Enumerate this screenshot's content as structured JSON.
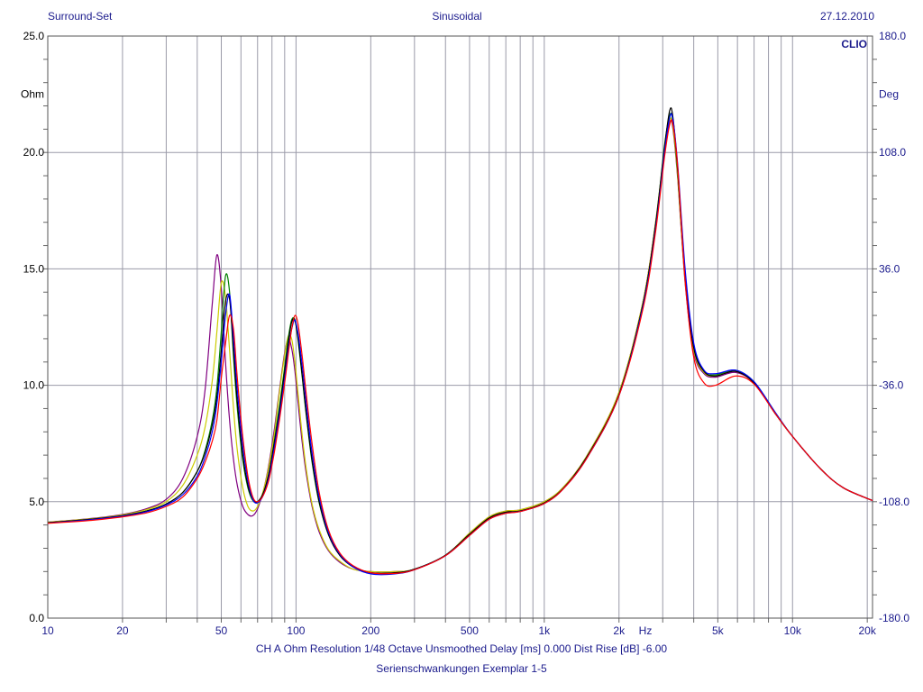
{
  "header": {
    "left": "Surround-Set",
    "center": "Sinusoidal",
    "right": "27.12.2010"
  },
  "footer": {
    "line1": "CH A   Ohm   Resolution 1/48 Octave   Unsmoothed   Delay [ms] 0.000   Dist Rise [dB] -6.00",
    "line2": "Serienschwankungen Exemplar 1-5"
  },
  "chart_data": {
    "type": "line",
    "brand": "CLIO",
    "xlabel": "Hz",
    "ylabel": "Ohm",
    "y2label": "Deg",
    "xscale": "log",
    "xlim": [
      10,
      21000
    ],
    "ylim": [
      0,
      25
    ],
    "y2lim": [
      -180,
      180
    ],
    "grid": true,
    "x_ticks": [
      {
        "v": 10,
        "l": "10"
      },
      {
        "v": 20,
        "l": "20"
      },
      {
        "v": 50,
        "l": "50"
      },
      {
        "v": 100,
        "l": "100"
      },
      {
        "v": 200,
        "l": "200"
      },
      {
        "v": 500,
        "l": "500"
      },
      {
        "v": 1000,
        "l": "1k"
      },
      {
        "v": 2000,
        "l": "2k"
      },
      {
        "v": 5000,
        "l": "5k"
      },
      {
        "v": 10000,
        "l": "10k"
      },
      {
        "v": 20000,
        "l": "20k"
      }
    ],
    "y_ticks": [
      {
        "v": 0,
        "l": "0.0"
      },
      {
        "v": 5,
        "l": "5.0"
      },
      {
        "v": 10,
        "l": "10.0"
      },
      {
        "v": 15,
        "l": "15.0"
      },
      {
        "v": 20,
        "l": "20.0"
      },
      {
        "v": 25,
        "l": "25.0"
      }
    ],
    "y2_ticks": [
      {
        "v": -180,
        "l": "-180.0"
      },
      {
        "v": -108,
        "l": "-108.0"
      },
      {
        "v": -36,
        "l": "-36.0"
      },
      {
        "v": 36,
        "l": "36.0"
      },
      {
        "v": 108,
        "l": "108.0"
      },
      {
        "v": 180,
        "l": "180.0"
      }
    ],
    "x": [
      10,
      15,
      20,
      25,
      30,
      35,
      40,
      43,
      46,
      48,
      50,
      52,
      54,
      56,
      58,
      61,
      64,
      67,
      70,
      74,
      78,
      82,
      86,
      90,
      93,
      96,
      99,
      102,
      106,
      110,
      116,
      124,
      135,
      150,
      170,
      200,
      250,
      300,
      400,
      500,
      600,
      700,
      800,
      1000,
      1200,
      1500,
      2000,
      2500,
      2800,
      3050,
      3200,
      3300,
      3450,
      3700,
      4000,
      4400,
      4900,
      5900,
      7000,
      8500,
      10000,
      13000,
      16000,
      21000
    ],
    "series": [
      {
        "color": "#800080",
        "values": [
          4.12,
          4.28,
          4.45,
          4.7,
          5.1,
          6.0,
          7.8,
          9.8,
          13.5,
          15.6,
          14.2,
          11.0,
          8.5,
          6.8,
          5.7,
          4.8,
          4.45,
          4.4,
          4.7,
          5.5,
          6.7,
          8.2,
          9.9,
          11.4,
          12.0,
          11.6,
          10.6,
          9.2,
          7.5,
          6.2,
          4.8,
          3.7,
          2.9,
          2.4,
          2.1,
          2.0,
          2.0,
          2.1,
          2.7,
          3.65,
          4.35,
          4.6,
          4.65,
          5.0,
          5.65,
          7.05,
          9.7,
          13.6,
          16.9,
          20.1,
          21.3,
          21.0,
          18.8,
          14.3,
          11.4,
          10.5,
          10.35,
          10.55,
          10.1,
          8.8,
          7.8,
          6.4,
          5.6,
          5.05
        ]
      },
      {
        "color": "#cccc00",
        "values": [
          4.12,
          4.27,
          4.43,
          4.66,
          5.0,
          5.7,
          7.0,
          8.2,
          10.2,
          12.3,
          14.4,
          13.8,
          11.5,
          9.0,
          7.2,
          5.6,
          4.8,
          4.6,
          4.8,
          5.5,
          6.6,
          8.0,
          9.8,
          11.3,
          12.1,
          12.0,
          11.0,
          9.6,
          7.8,
          6.4,
          4.9,
          3.8,
          2.95,
          2.45,
          2.1,
          2.0,
          2.0,
          2.1,
          2.7,
          3.65,
          4.35,
          4.6,
          4.65,
          5.0,
          5.65,
          7.05,
          9.7,
          13.6,
          16.9,
          20.2,
          21.4,
          21.1,
          18.9,
          14.4,
          11.5,
          10.55,
          10.4,
          10.6,
          10.1,
          8.8,
          7.8,
          6.4,
          5.6,
          5.05
        ]
      },
      {
        "color": "#008000",
        "values": [
          4.1,
          4.25,
          4.4,
          4.6,
          4.9,
          5.4,
          6.3,
          7.2,
          8.5,
          9.9,
          12.3,
          14.7,
          14.0,
          11.2,
          9.0,
          6.8,
          5.6,
          5.05,
          5.0,
          5.4,
          6.3,
          7.7,
          9.2,
          10.8,
          12.0,
          12.8,
          12.8,
          11.9,
          10.3,
          8.7,
          6.7,
          4.95,
          3.6,
          2.7,
          2.2,
          1.95,
          1.95,
          2.1,
          2.7,
          3.6,
          4.3,
          4.55,
          4.6,
          4.95,
          5.6,
          7.0,
          9.6,
          13.5,
          16.8,
          20.3,
          21.6,
          21.3,
          19.1,
          14.6,
          11.7,
          10.6,
          10.45,
          10.65,
          10.15,
          8.85,
          7.8,
          6.4,
          5.6,
          5.05
        ]
      },
      {
        "color": "#000000",
        "values": [
          4.1,
          4.25,
          4.4,
          4.6,
          4.9,
          5.4,
          6.3,
          7.1,
          8.3,
          9.5,
          11.5,
          13.6,
          13.7,
          11.5,
          9.3,
          7.0,
          5.7,
          5.1,
          5.0,
          5.4,
          6.3,
          7.6,
          9.0,
          10.6,
          11.8,
          12.7,
          12.8,
          12.0,
          10.4,
          8.8,
          6.8,
          5.0,
          3.6,
          2.7,
          2.2,
          1.95,
          1.95,
          2.1,
          2.7,
          3.6,
          4.3,
          4.55,
          4.6,
          4.95,
          5.6,
          7.0,
          9.6,
          13.5,
          16.8,
          20.2,
          21.8,
          21.5,
          19.2,
          14.6,
          11.6,
          10.6,
          10.4,
          10.6,
          10.1,
          8.8,
          7.8,
          6.4,
          5.6,
          5.05
        ]
      },
      {
        "color": "#0000ff",
        "values": [
          4.08,
          4.23,
          4.38,
          4.57,
          4.86,
          5.3,
          6.1,
          6.9,
          8.0,
          9.2,
          11.0,
          13.0,
          13.9,
          12.0,
          9.8,
          7.4,
          5.9,
          5.1,
          4.95,
          5.3,
          6.1,
          7.4,
          8.8,
          10.3,
          11.5,
          12.4,
          12.8,
          12.2,
          10.8,
          9.2,
          7.1,
          5.2,
          3.7,
          2.75,
          2.2,
          1.9,
          1.9,
          2.08,
          2.68,
          3.55,
          4.25,
          4.5,
          4.58,
          4.92,
          5.58,
          6.95,
          9.55,
          13.4,
          16.6,
          20.0,
          21.5,
          21.4,
          19.4,
          14.9,
          11.8,
          10.65,
          10.5,
          10.65,
          10.15,
          8.85,
          7.8,
          6.4,
          5.6,
          5.05
        ]
      },
      {
        "color": "#ff0000",
        "values": [
          4.07,
          4.2,
          4.35,
          4.52,
          4.8,
          5.2,
          6.0,
          6.7,
          7.6,
          8.5,
          10.3,
          11.8,
          13.0,
          12.4,
          10.3,
          7.8,
          6.1,
          5.2,
          5.0,
          5.3,
          6.0,
          7.2,
          8.6,
          10.1,
          11.3,
          12.4,
          13.0,
          12.6,
          11.2,
          9.6,
          7.5,
          5.4,
          3.8,
          2.8,
          2.25,
          1.95,
          1.92,
          2.08,
          2.68,
          3.55,
          4.25,
          4.5,
          4.58,
          4.92,
          5.58,
          6.95,
          9.55,
          13.3,
          16.5,
          19.8,
          21.2,
          21.2,
          19.3,
          14.4,
          11.2,
          10.1,
          10.0,
          10.4,
          10.05,
          8.8,
          7.8,
          6.4,
          5.6,
          5.05
        ]
      }
    ]
  }
}
